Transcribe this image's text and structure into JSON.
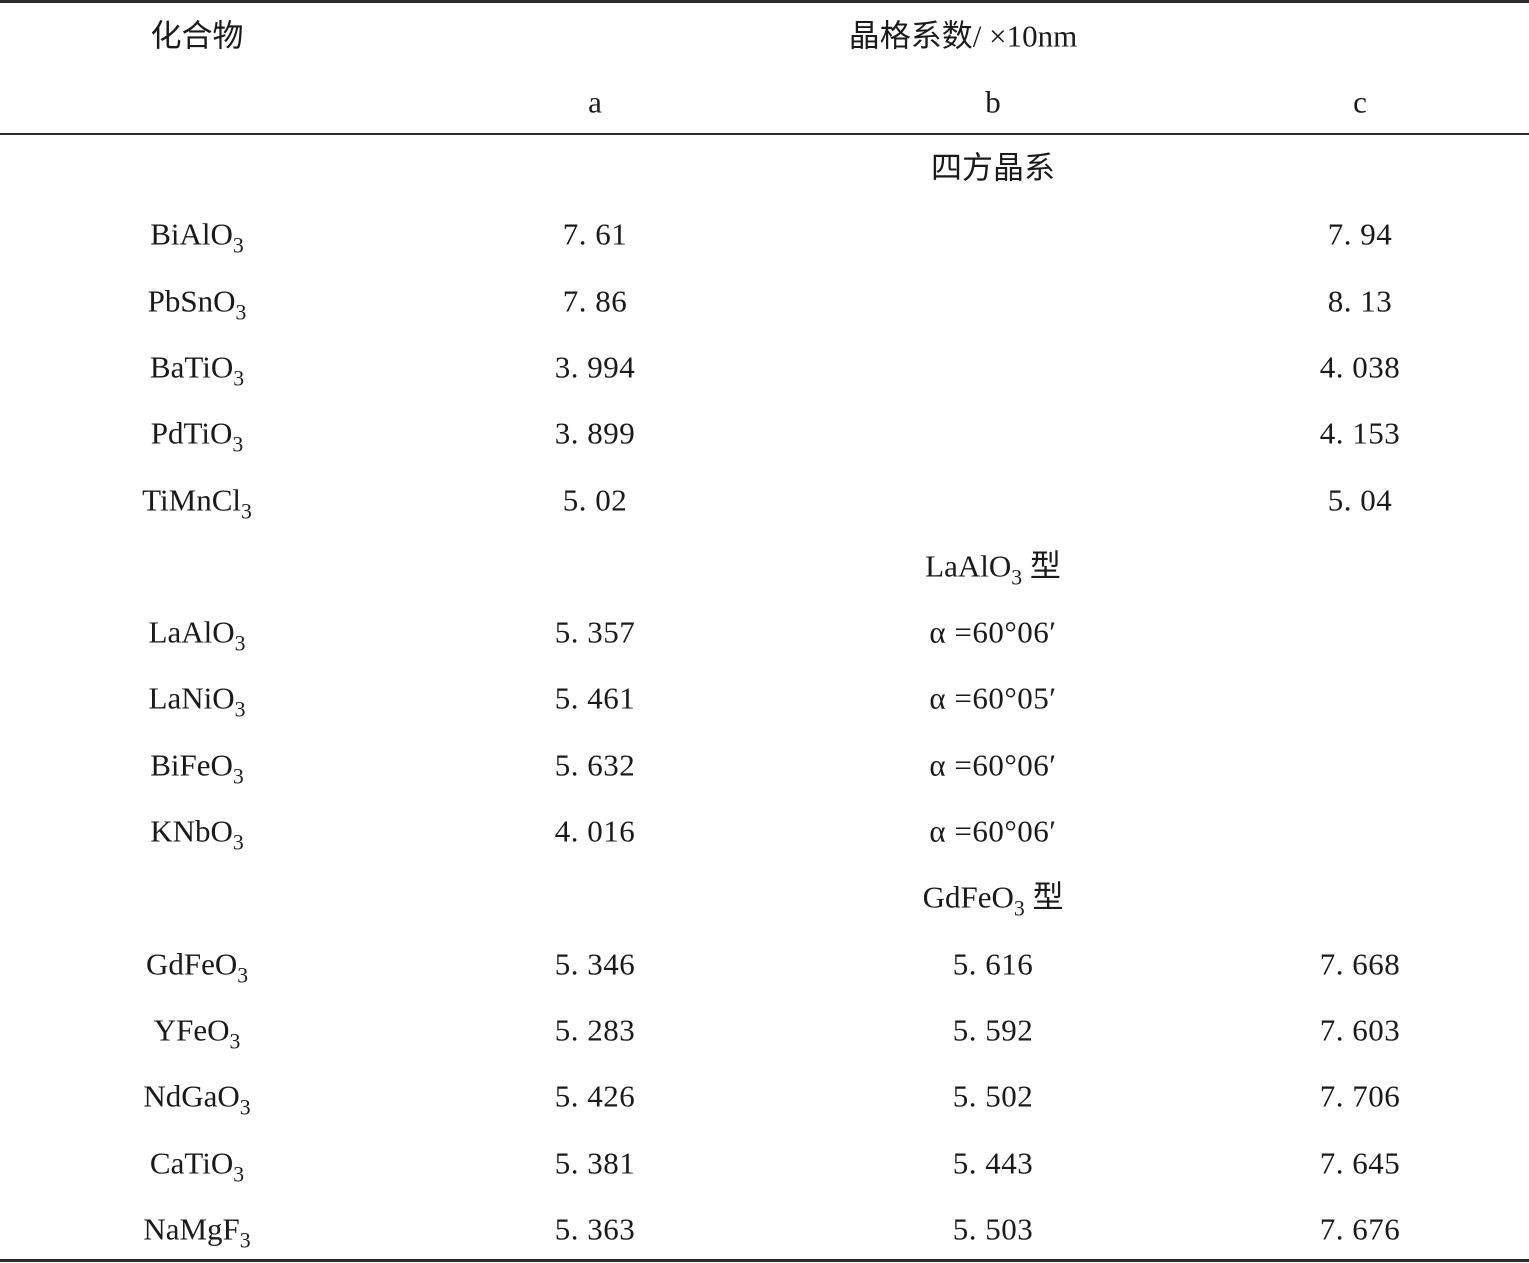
{
  "table": {
    "header": {
      "compound": "化合物",
      "lattice": "晶格系数/ ×10nm",
      "a": "a",
      "b": "b",
      "c": "c"
    },
    "groups": [
      {
        "title": {
          "pre": "四方晶系",
          "sub": "",
          "post": ""
        },
        "rows": [
          {
            "formula": "BiAlO",
            "sub": "3",
            "a": "7. 61",
            "b": "",
            "c": "7. 94"
          },
          {
            "formula": "PbSnO",
            "sub": "3",
            "a": "7. 86",
            "b": "",
            "c": "8. 13"
          },
          {
            "formula": "BaTiO",
            "sub": "3",
            "a": "3. 994",
            "b": "",
            "c": "4. 038"
          },
          {
            "formula": "PdTiO",
            "sub": "3",
            "a": "3. 899",
            "b": "",
            "c": "4. 153"
          },
          {
            "formula": "TiMnCl",
            "sub": "3",
            "a": "5. 02",
            "b": "",
            "c": "5. 04"
          }
        ]
      },
      {
        "title": {
          "pre": "LaAlO",
          "sub": "3",
          "post": " 型"
        },
        "rows": [
          {
            "formula": "LaAlO",
            "sub": "3",
            "a": "5. 357",
            "b": "α =60°06′",
            "c": ""
          },
          {
            "formula": "LaNiO",
            "sub": "3",
            "a": "5. 461",
            "b": "α =60°05′",
            "c": ""
          },
          {
            "formula": "BiFeO",
            "sub": "3",
            "a": "5. 632",
            "b": "α =60°06′",
            "c": ""
          },
          {
            "formula": "KNbO",
            "sub": "3",
            "a": "4. 016",
            "b": "α =60°06′",
            "c": ""
          }
        ]
      },
      {
        "title": {
          "pre": "GdFeO",
          "sub": "3",
          "post": " 型"
        },
        "rows": [
          {
            "formula": "GdFeO",
            "sub": "3",
            "a": "5. 346",
            "b": "5. 616",
            "c": "7. 668"
          },
          {
            "formula": "YFeO",
            "sub": "3",
            "a": "5. 283",
            "b": "5. 592",
            "c": "7. 603"
          },
          {
            "formula": "NdGaO",
            "sub": "3",
            "a": "5. 426",
            "b": "5. 502",
            "c": "7. 706"
          },
          {
            "formula": "CaTiO",
            "sub": "3",
            "a": "5. 381",
            "b": "5. 443",
            "c": "7. 645"
          },
          {
            "formula": "NaMgF",
            "sub": "3",
            "a": "5. 363",
            "b": "5. 503",
            "c": "7. 676"
          }
        ]
      }
    ]
  }
}
